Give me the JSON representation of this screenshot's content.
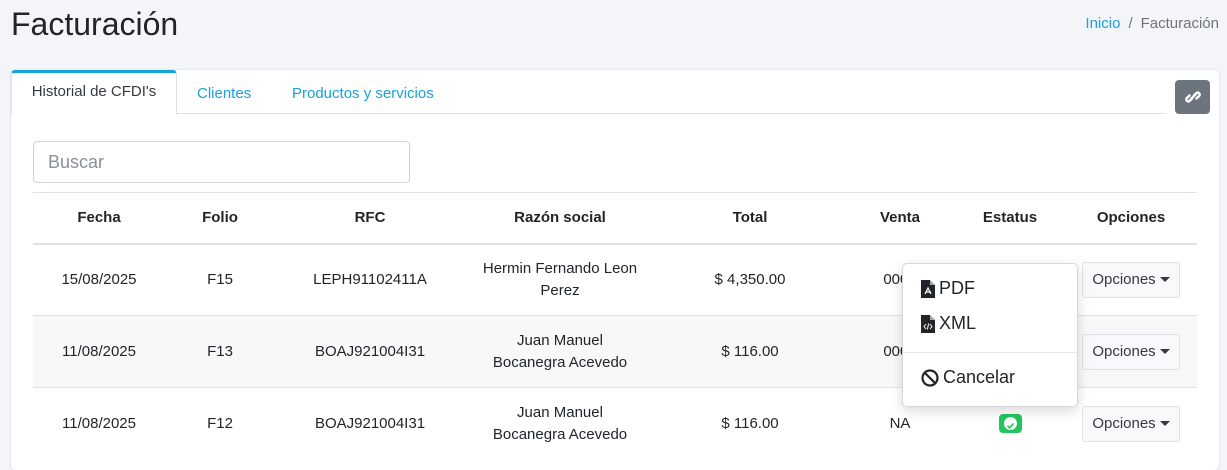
{
  "header": {
    "title": "Facturación",
    "breadcrumb": {
      "home": "Inicio",
      "separator": "/",
      "current": "Facturación"
    }
  },
  "tabs": [
    {
      "label": "Historial de CFDI's",
      "active": true
    },
    {
      "label": "Clientes"
    },
    {
      "label": "Productos y servicios"
    }
  ],
  "toolbar": {
    "link_icon": "link-icon"
  },
  "search": {
    "placeholder": "Buscar",
    "value": ""
  },
  "table": {
    "columns": [
      "Fecha",
      "Folio",
      "RFC",
      "Razón social",
      "Total",
      "Venta",
      "Estatus",
      "Opciones"
    ],
    "rows": [
      {
        "fecha": "15/08/2025",
        "folio": "F15",
        "rfc": "LEPH91102411A",
        "razon": [
          "Hermin Fernando Leon",
          "Perez"
        ],
        "total": "$ 4,350.00",
        "venta": "0000",
        "estatus": "",
        "opciones": "Opciones"
      },
      {
        "fecha": "11/08/2025",
        "folio": "F13",
        "rfc": "BOAJ921004I31",
        "razon": [
          "Juan Manuel",
          "Bocanegra Acevedo"
        ],
        "total": "$ 116.00",
        "venta": "0000",
        "estatus": "",
        "opciones": "Opciones"
      },
      {
        "fecha": "11/08/2025",
        "folio": "F12",
        "rfc": "BOAJ921004I31",
        "razon": [
          "Juan Manuel",
          "Bocanegra Acevedo"
        ],
        "total": "$ 116.00",
        "venta": "NA",
        "estatus": "check-badge",
        "opciones": "Opciones"
      }
    ]
  },
  "dropdown": {
    "items": [
      {
        "label": "PDF",
        "icon": "file-pdf-icon"
      },
      {
        "label": "XML",
        "icon": "file-code-icon"
      },
      {
        "label": "Cancelar",
        "icon": "ban-icon"
      }
    ]
  },
  "colors": {
    "accent": "#17a2d8",
    "success": "#22c55e",
    "secondary": "#6c757d"
  }
}
